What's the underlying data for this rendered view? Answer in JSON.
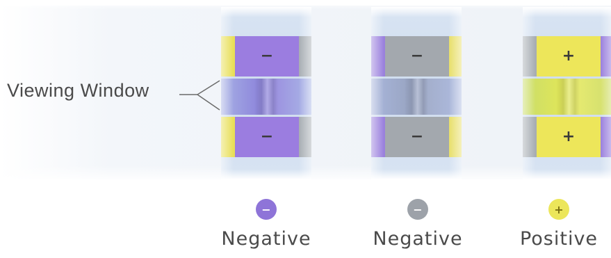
{
  "viewing_window_label": "Viewing Window",
  "colors": {
    "purple": "#9b7de0",
    "gray": "#a3a8ae",
    "yellow": "#ece65a",
    "window_blue": "#a9b6e0"
  },
  "tests": [
    {
      "pad_sign": "−",
      "result_label": "Negative",
      "dot_sign": "−",
      "dot_color": "#8e74d8"
    },
    {
      "pad_sign": "−",
      "result_label": "Negative",
      "dot_sign": "−",
      "dot_color": "#9da2a9"
    },
    {
      "pad_sign": "+",
      "result_label": "Positive",
      "dot_sign": "+",
      "dot_color": "#ece65a"
    }
  ]
}
